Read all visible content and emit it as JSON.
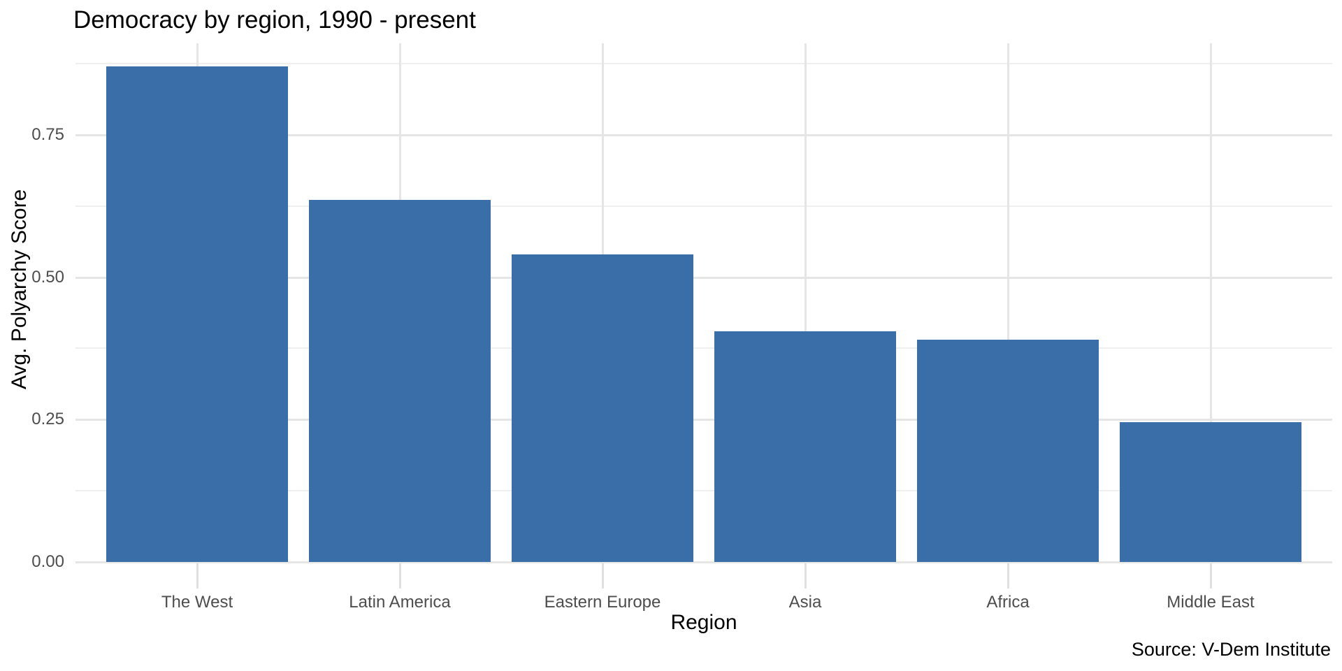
{
  "chart_data": {
    "type": "bar",
    "title": "Democracy by region, 1990 - present",
    "xlabel": "Region",
    "ylabel": "Avg. Polyarchy Score",
    "caption": "Source: V-Dem Institute",
    "categories": [
      "The West",
      "Latin America",
      "Eastern Europe",
      "Asia",
      "Africa",
      "Middle East"
    ],
    "values": [
      0.87,
      0.635,
      0.54,
      0.405,
      0.39,
      0.245
    ],
    "ytick_labels": [
      "0.00",
      "0.25",
      "0.50",
      "0.75"
    ],
    "ytick_values": [
      0,
      0.25,
      0.5,
      0.75
    ],
    "yminor_values": [
      0.125,
      0.375,
      0.625,
      0.875
    ],
    "ylim": [
      0,
      0.91
    ],
    "grid": "on",
    "legend": "none",
    "bar_color": "#3A6EA8"
  },
  "colors": {
    "background": "#FFFFFF",
    "title_text": "#000000",
    "axis_title_text": "#000000",
    "tick_label_text": "#4D4D4D",
    "grid_major": "#E5E5E5",
    "grid_minor": "#EFEFEF",
    "tick_mark": "#E0E0E0"
  }
}
